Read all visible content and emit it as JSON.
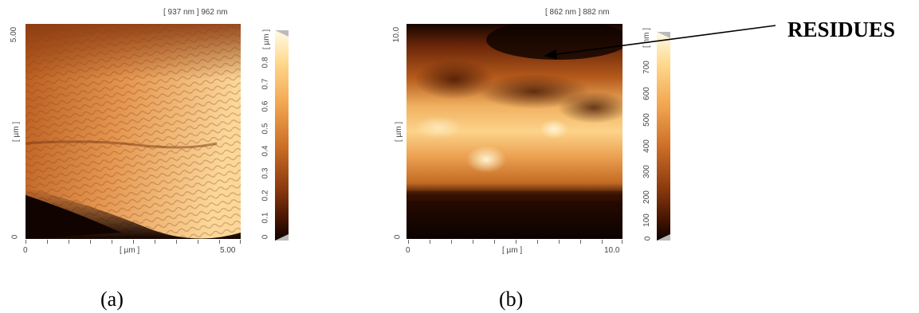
{
  "panel_a": {
    "header": "[ 937 nm ] 962 nm",
    "y_axis": {
      "label": "[ µm ]",
      "max_label": "5.00",
      "min_label": "0"
    },
    "x_axis": {
      "label": "[ µm ]",
      "min_label": "0",
      "max_label": "5.00"
    },
    "colorbar": {
      "unit": "[ µm ]",
      "ticks": [
        "0.8",
        "0.7",
        "0.6",
        "0.5",
        "0.4",
        "0.3",
        "0.2",
        "0.1",
        "0"
      ]
    },
    "caption": "(a)"
  },
  "panel_b": {
    "header": "[ 862 nm ] 882 nm",
    "y_axis": {
      "label": "[ µm ]",
      "max_label": "10.0",
      "min_label": "0"
    },
    "x_axis": {
      "label": "[ µm ]",
      "min_label": "0",
      "max_label": "10.0"
    },
    "colorbar": {
      "unit": "[ nm ]",
      "ticks": [
        "700",
        "600",
        "500",
        "400",
        "300",
        "200",
        "100",
        "0"
      ]
    },
    "caption": "(b)"
  },
  "annotation": {
    "label": "RESIDUES"
  },
  "colors": {
    "dark": "#1a0700",
    "mid": "#c8702a",
    "light": "#ffe2a8"
  }
}
